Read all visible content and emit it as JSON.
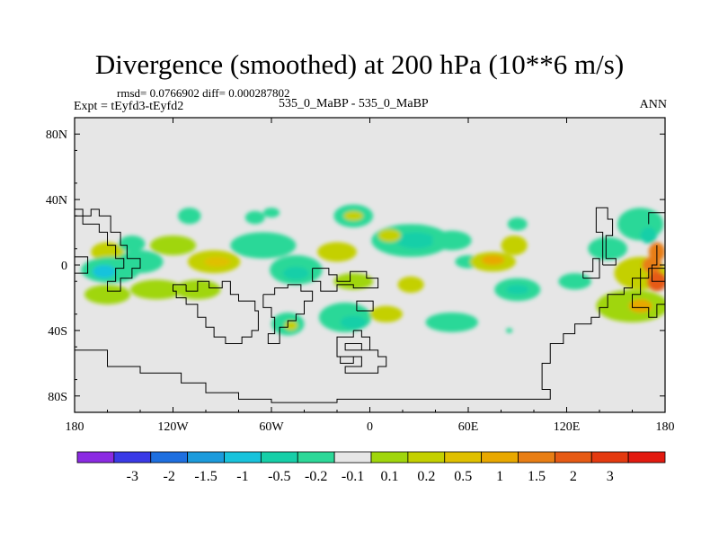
{
  "chart_data": {
    "type": "heatmap",
    "title": "Divergence (smoothed) at 200 hPa (10**6 m/s)",
    "stats_label": "rmsd= 0.0766902  diff= 0.000287802",
    "experiment_label": "Expt = tEyfd3-tEyfd2",
    "subtitle": "535_0_MaBP - 535_0_MaBP",
    "season": "ANN",
    "x_ticks": [
      {
        "lon": -180,
        "label": "180"
      },
      {
        "lon": -120,
        "label": "120W"
      },
      {
        "lon": -60,
        "label": "60W"
      },
      {
        "lon": 0,
        "label": "0"
      },
      {
        "lon": 60,
        "label": "60E"
      },
      {
        "lon": 120,
        "label": "120E"
      },
      {
        "lon": 180,
        "label": "180"
      }
    ],
    "y_ticks": [
      {
        "lat": 80,
        "label": "80N"
      },
      {
        "lat": 40,
        "label": "40N"
      },
      {
        "lat": 0,
        "label": "0"
      },
      {
        "lat": -40,
        "label": "40S"
      },
      {
        "lat": -80,
        "label": "80S"
      }
    ],
    "xlim": [
      -180,
      180
    ],
    "ylim": [
      -90,
      90
    ],
    "colorbar": {
      "colors": [
        "#8b2be2",
        "#3a3ae6",
        "#1e6fe0",
        "#1c9bdc",
        "#18c3dc",
        "#16cfa8",
        "#2cd898",
        "#e6e6e6",
        "#a0d60c",
        "#c4d000",
        "#e0c000",
        "#e8a800",
        "#e87e14",
        "#e65a14",
        "#e43a10",
        "#e21a10"
      ],
      "labels": [
        "-3",
        "-2",
        "-1.5",
        "-1",
        "-0.5",
        "-0.2",
        "-0.1",
        "0.1",
        "0.2",
        "0.5",
        "1",
        "1.5",
        "2",
        "3"
      ]
    },
    "fields": [
      {
        "lon": -160,
        "lat": 8,
        "rx": 10,
        "ry": 6,
        "level": 9
      },
      {
        "lon": -158,
        "lat": -3,
        "rx": 18,
        "ry": 8,
        "level": 6
      },
      {
        "lon": -162,
        "lat": -4,
        "rx": 7,
        "ry": 4,
        "level": 4
      },
      {
        "lon": -160,
        "lat": -18,
        "rx": 14,
        "ry": 6,
        "level": 8
      },
      {
        "lon": -140,
        "lat": 2,
        "rx": 14,
        "ry": 7,
        "level": 6
      },
      {
        "lon": -130,
        "lat": -15,
        "rx": 16,
        "ry": 6,
        "level": 8
      },
      {
        "lon": -145,
        "lat": 13,
        "rx": 8,
        "ry": 5,
        "level": 6
      },
      {
        "lon": -110,
        "lat": 30,
        "rx": 7,
        "ry": 5,
        "level": 6
      },
      {
        "lon": -70,
        "lat": 29,
        "rx": 6,
        "ry": 4,
        "level": 6
      },
      {
        "lon": -60,
        "lat": 32,
        "rx": 5,
        "ry": 3,
        "level": 6
      },
      {
        "lon": -120,
        "lat": 12,
        "rx": 14,
        "ry": 6,
        "level": 8
      },
      {
        "lon": -95,
        "lat": 2,
        "rx": 16,
        "ry": 7,
        "level": 9
      },
      {
        "lon": -93,
        "lat": 2,
        "rx": 8,
        "ry": 3,
        "level": 10
      },
      {
        "lon": -105,
        "lat": -15,
        "rx": 14,
        "ry": 6,
        "level": 8
      },
      {
        "lon": -65,
        "lat": 12,
        "rx": 20,
        "ry": 8,
        "level": 6
      },
      {
        "lon": -45,
        "lat": -3,
        "rx": 16,
        "ry": 9,
        "level": 6
      },
      {
        "lon": -45,
        "lat": -5,
        "rx": 8,
        "ry": 4,
        "level": 5
      },
      {
        "lon": -20,
        "lat": 8,
        "rx": 12,
        "ry": 6,
        "level": 9
      },
      {
        "lon": -10,
        "lat": -10,
        "rx": 12,
        "ry": 5,
        "level": 8
      },
      {
        "lon": -50,
        "lat": -36,
        "rx": 10,
        "ry": 7,
        "level": 6
      },
      {
        "lon": -48,
        "lat": -37,
        "rx": 4,
        "ry": 3,
        "level": 9
      },
      {
        "lon": -10,
        "lat": 30,
        "rx": 12,
        "ry": 7,
        "level": 6
      },
      {
        "lon": -10,
        "lat": 30,
        "rx": 6,
        "ry": 3,
        "level": 9
      },
      {
        "lon": 25,
        "lat": 15,
        "rx": 24,
        "ry": 10,
        "level": 6
      },
      {
        "lon": 28,
        "lat": 15,
        "rx": 12,
        "ry": 5,
        "level": 5
      },
      {
        "lon": -15,
        "lat": -32,
        "rx": 16,
        "ry": 9,
        "level": 6
      },
      {
        "lon": -10,
        "lat": -35,
        "rx": 8,
        "ry": 4,
        "level": 5
      },
      {
        "lon": 12,
        "lat": 18,
        "rx": 7,
        "ry": 4,
        "level": 9
      },
      {
        "lon": 10,
        "lat": -30,
        "rx": 10,
        "ry": 5,
        "level": 9
      },
      {
        "lon": 50,
        "lat": -35,
        "rx": 16,
        "ry": 6,
        "level": 6
      },
      {
        "lon": 25,
        "lat": -12,
        "rx": 8,
        "ry": 5,
        "level": 9
      },
      {
        "lon": 50,
        "lat": 15,
        "rx": 12,
        "ry": 6,
        "level": 6
      },
      {
        "lon": 60,
        "lat": 2,
        "rx": 8,
        "ry": 4,
        "level": 6
      },
      {
        "lon": 75,
        "lat": 2,
        "rx": 14,
        "ry": 6,
        "level": 9
      },
      {
        "lon": 75,
        "lat": 3,
        "rx": 7,
        "ry": 3,
        "level": 11
      },
      {
        "lon": 88,
        "lat": 12,
        "rx": 8,
        "ry": 6,
        "level": 9
      },
      {
        "lon": 90,
        "lat": 25,
        "rx": 6,
        "ry": 4,
        "level": 6
      },
      {
        "lon": 90,
        "lat": -15,
        "rx": 14,
        "ry": 7,
        "level": 6
      },
      {
        "lon": 90,
        "lat": -15,
        "rx": 7,
        "ry": 3,
        "level": 5
      },
      {
        "lon": 125,
        "lat": -10,
        "rx": 10,
        "ry": 5,
        "level": 6
      },
      {
        "lon": 145,
        "lat": 10,
        "rx": 12,
        "ry": 7,
        "level": 6
      },
      {
        "lon": 165,
        "lat": 25,
        "rx": 14,
        "ry": 10,
        "level": 6
      },
      {
        "lon": 170,
        "lat": 18,
        "rx": 5,
        "ry": 5,
        "level": 5
      },
      {
        "lon": 165,
        "lat": -5,
        "rx": 16,
        "ry": 10,
        "level": 9
      },
      {
        "lon": 172,
        "lat": 0,
        "rx": 6,
        "ry": 5,
        "level": 12
      },
      {
        "lon": 175,
        "lat": -10,
        "rx": 6,
        "ry": 6,
        "level": 13
      },
      {
        "lon": 160,
        "lat": -25,
        "rx": 22,
        "ry": 10,
        "level": 8
      },
      {
        "lon": 165,
        "lat": -25,
        "rx": 7,
        "ry": 4,
        "level": 11
      },
      {
        "lon": 175,
        "lat": 8,
        "rx": 5,
        "ry": 6,
        "level": 12
      },
      {
        "lon": 85,
        "lat": -40,
        "rx": 2,
        "ry": 1.5,
        "level": 6
      }
    ],
    "coastlines": [
      [
        [
          -180,
          34
        ],
        [
          -175,
          34
        ],
        [
          -175,
          25
        ],
        [
          -165,
          25
        ],
        [
          -165,
          20
        ],
        [
          -160,
          20
        ],
        [
          -160,
          12
        ],
        [
          -155,
          12
        ],
        [
          -155,
          4
        ],
        [
          -150,
          4
        ],
        [
          -150,
          -2
        ],
        [
          -155,
          -2
        ],
        [
          -155,
          -10
        ],
        [
          -160,
          -10
        ],
        [
          -160,
          -16
        ],
        [
          -152,
          -16
        ],
        [
          -152,
          -8
        ],
        [
          -145,
          -8
        ],
        [
          -145,
          -2
        ],
        [
          -140,
          -2
        ],
        [
          -140,
          4
        ],
        [
          -148,
          4
        ],
        [
          -148,
          12
        ],
        [
          -152,
          12
        ],
        [
          -152,
          20
        ],
        [
          -158,
          20
        ],
        [
          -158,
          30
        ],
        [
          -165,
          30
        ],
        [
          -165,
          34
        ],
        [
          -170,
          34
        ],
        [
          -170,
          30
        ],
        [
          -180,
          30
        ]
      ],
      [
        [
          -112,
          -12
        ],
        [
          -112,
          -16
        ],
        [
          -105,
          -16
        ],
        [
          -105,
          -10
        ],
        [
          -98,
          -10
        ],
        [
          -98,
          -14
        ],
        [
          -90,
          -14
        ],
        [
          -90,
          -10
        ],
        [
          -85,
          -10
        ],
        [
          -85,
          -18
        ],
        [
          -80,
          -18
        ],
        [
          -80,
          -22
        ],
        [
          -70,
          -22
        ],
        [
          -70,
          -28
        ],
        [
          -68,
          -28
        ],
        [
          -68,
          -40
        ],
        [
          -72,
          -40
        ],
        [
          -72,
          -44
        ],
        [
          -78,
          -44
        ],
        [
          -78,
          -48
        ],
        [
          -88,
          -48
        ],
        [
          -88,
          -44
        ],
        [
          -95,
          -44
        ],
        [
          -95,
          -38
        ],
        [
          -100,
          -38
        ],
        [
          -100,
          -32
        ],
        [
          -105,
          -32
        ],
        [
          -105,
          -24
        ],
        [
          -112,
          -24
        ],
        [
          -112,
          -20
        ],
        [
          -118,
          -20
        ],
        [
          -118,
          -16
        ],
        [
          -120,
          -16
        ],
        [
          -120,
          -12
        ],
        [
          -112,
          -12
        ]
      ],
      [
        [
          -65,
          -18
        ],
        [
          -65,
          -26
        ],
        [
          -60,
          -26
        ],
        [
          -60,
          -32
        ],
        [
          -58,
          -32
        ],
        [
          -58,
          -42
        ],
        [
          -62,
          -42
        ],
        [
          -62,
          -48
        ],
        [
          -55,
          -48
        ],
        [
          -55,
          -38
        ],
        [
          -50,
          -38
        ],
        [
          -50,
          -34
        ],
        [
          -45,
          -34
        ],
        [
          -45,
          -30
        ],
        [
          -40,
          -30
        ],
        [
          -40,
          -22
        ],
        [
          -35,
          -22
        ],
        [
          -35,
          -16
        ],
        [
          -42,
          -16
        ],
        [
          -42,
          -12
        ],
        [
          -50,
          -12
        ],
        [
          -50,
          -14
        ],
        [
          -58,
          -14
        ],
        [
          -58,
          -18
        ],
        [
          -65,
          -18
        ]
      ],
      [
        [
          -180,
          -52
        ],
        [
          -160,
          -52
        ],
        [
          -160,
          -62
        ],
        [
          -140,
          -62
        ],
        [
          -140,
          -66
        ],
        [
          -115,
          -66
        ],
        [
          -115,
          -72
        ],
        [
          -100,
          -72
        ],
        [
          -100,
          -78
        ],
        [
          -80,
          -78
        ],
        [
          -80,
          -82
        ],
        [
          -60,
          -82
        ],
        [
          -60,
          -84
        ],
        [
          -20,
          -84
        ],
        [
          -20,
          -82
        ],
        [
          110,
          -82
        ],
        [
          110,
          -76
        ],
        [
          105,
          -76
        ],
        [
          105,
          -60
        ],
        [
          110,
          -60
        ],
        [
          110,
          -48
        ],
        [
          118,
          -48
        ],
        [
          118,
          -42
        ],
        [
          125,
          -42
        ],
        [
          125,
          -36
        ],
        [
          135,
          -36
        ],
        [
          135,
          -32
        ],
        [
          140,
          -32
        ],
        [
          140,
          -26
        ],
        [
          145,
          -26
        ],
        [
          145,
          -18
        ],
        [
          155,
          -18
        ],
        [
          155,
          -14
        ],
        [
          160,
          -14
        ],
        [
          160,
          -8
        ],
        [
          170,
          -8
        ],
        [
          170,
          -2
        ],
        [
          180,
          -2
        ]
      ],
      [
        [
          -10,
          -40
        ],
        [
          -10,
          -44
        ],
        [
          -20,
          -44
        ],
        [
          -20,
          -56
        ],
        [
          -5,
          -56
        ],
        [
          -5,
          -62
        ],
        [
          -15,
          -62
        ],
        [
          -15,
          -66
        ],
        [
          5,
          -66
        ],
        [
          5,
          -62
        ],
        [
          10,
          -62
        ],
        [
          10,
          -56
        ],
        [
          5,
          -56
        ],
        [
          5,
          -52
        ],
        [
          -5,
          -52
        ],
        [
          -5,
          -48
        ],
        [
          -15,
          -48
        ],
        [
          -15,
          -52
        ],
        [
          0,
          -52
        ],
        [
          0,
          -44
        ],
        [
          -5,
          -44
        ],
        [
          -5,
          -40
        ],
        [
          -10,
          -40
        ]
      ],
      [
        [
          -18,
          -56
        ],
        [
          -10,
          -56
        ],
        [
          -10,
          -60
        ],
        [
          -18,
          -60
        ],
        [
          -18,
          -56
        ]
      ],
      [
        [
          -35,
          -2
        ],
        [
          -25,
          -2
        ],
        [
          -25,
          -6
        ],
        [
          -20,
          -6
        ],
        [
          -20,
          -10
        ],
        [
          -12,
          -10
        ],
        [
          -12,
          -4
        ],
        [
          -2,
          -4
        ],
        [
          -2,
          -8
        ],
        [
          5,
          -8
        ],
        [
          5,
          -14
        ],
        [
          -10,
          -14
        ],
        [
          -10,
          -12
        ],
        [
          -20,
          -12
        ],
        [
          -20,
          -16
        ],
        [
          -30,
          -16
        ],
        [
          -30,
          -10
        ],
        [
          -35,
          -10
        ],
        [
          -35,
          -2
        ]
      ],
      [
        [
          -8,
          -28
        ],
        [
          2,
          -28
        ],
        [
          2,
          -22
        ],
        [
          -8,
          -22
        ],
        [
          -8,
          -28
        ]
      ],
      [
        [
          165,
          -2
        ],
        [
          165,
          -18
        ],
        [
          160,
          -18
        ],
        [
          160,
          -26
        ],
        [
          170,
          -26
        ],
        [
          170,
          -32
        ],
        [
          175,
          -32
        ],
        [
          175,
          -24
        ],
        [
          180,
          -24
        ]
      ],
      [
        [
          142,
          0
        ],
        [
          142,
          20
        ],
        [
          138,
          20
        ],
        [
          138,
          35
        ],
        [
          145,
          35
        ],
        [
          145,
          28
        ],
        [
          148,
          28
        ],
        [
          148,
          18
        ],
        [
          144,
          18
        ],
        [
          144,
          4
        ],
        [
          150,
          4
        ],
        [
          150,
          0
        ],
        [
          142,
          0
        ]
      ],
      [
        [
          -180,
          5
        ],
        [
          -172,
          5
        ],
        [
          -172,
          -5
        ],
        [
          -180,
          -5
        ]
      ],
      [
        [
          130,
          -8
        ],
        [
          130,
          -4
        ],
        [
          136,
          -4
        ],
        [
          136,
          4
        ],
        [
          140,
          4
        ],
        [
          140,
          -8
        ],
        [
          130,
          -8
        ]
      ],
      [
        [
          175,
          12
        ],
        [
          175,
          0
        ],
        [
          172,
          0
        ],
        [
          172,
          -10
        ],
        [
          180,
          -10
        ]
      ],
      [
        [
          170,
          25
        ],
        [
          170,
          32
        ],
        [
          180,
          32
        ]
      ]
    ]
  }
}
